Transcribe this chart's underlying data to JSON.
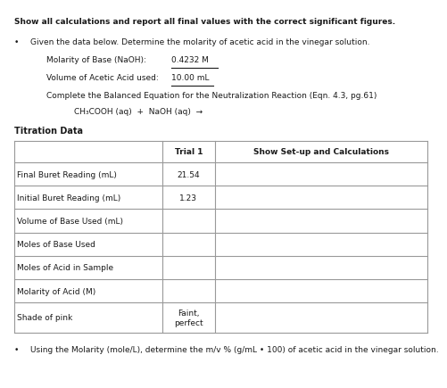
{
  "title_bold": "Show all calculations and report all final values with the correct significant figures.",
  "bullet1": "Given the data below. Determine the molarity of acetic acid in the vinegar solution.",
  "label1": "Molarity of Base (NaOH):",
  "value1": "0.4232 M",
  "label2": "Volume of Acetic Acid used:",
  "value2": "10.00 mL",
  "complete_eq_text": "Complete the Balanced Equation for the Neutralization Reaction (Eqn. 4.3, pg.61)",
  "equation": "CH₃COOH (aq)  +  NaOH (aq)  →",
  "section_title": "Titration Data",
  "table_headers": [
    "",
    "Trial 1",
    "Show Set-up and Calculations"
  ],
  "table_rows": [
    [
      "Final Buret Reading (mL)",
      "21.54",
      ""
    ],
    [
      "Initial Buret Reading (mL)",
      "1.23",
      ""
    ],
    [
      "Volume of Base Used (mL)",
      "",
      ""
    ],
    [
      "Moles of Base Used",
      "",
      ""
    ],
    [
      "Moles of Acid in Sample",
      "",
      ""
    ],
    [
      "Molarity of Acid (M)",
      "",
      ""
    ],
    [
      "Shade of pink",
      "Faint,\nperfect",
      ""
    ]
  ],
  "bullet2": "Using the Molarity (mole/L), determine the m/v % (g/mL • 100) of acetic acid in the vinegar solution.",
  "bg_color": "#ffffff",
  "text_color": "#1a1a1a",
  "table_bg": "#ffffff",
  "table_border": "#999999"
}
